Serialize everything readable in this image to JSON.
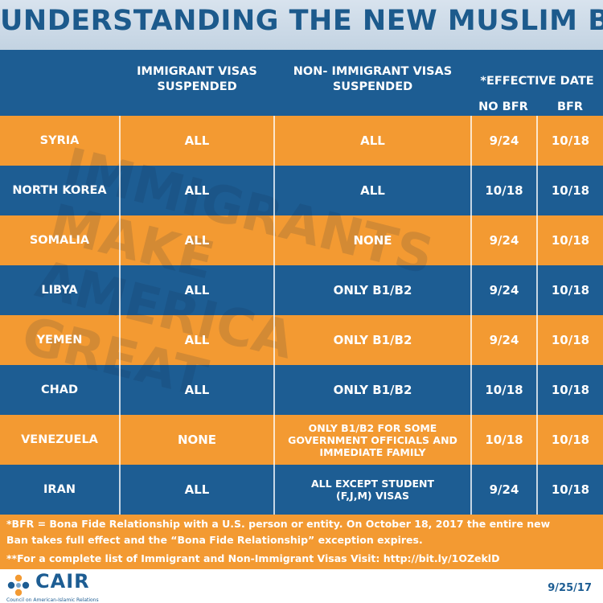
{
  "title": "UNDERSTANDING THE NEW MUSLIM BAN",
  "watermark": "IMMIGRANTS\nMAKE\nAMERICA\nGREAT",
  "headers": {
    "immigrant": "IMMIGRANT VISAS SUSPENDED",
    "non_immigrant": "NON- IMMIGRANT VISAS SUSPENDED",
    "effective": "*EFFECTIVE DATE",
    "no_bfr": "NO BFR",
    "bfr": "BFR"
  },
  "rows": [
    {
      "country": "SYRIA",
      "immigrant": "ALL",
      "non_immigrant": "ALL",
      "no_bfr": "9/24",
      "bfr": "10/18"
    },
    {
      "country": "NORTH KOREA",
      "immigrant": "ALL",
      "non_immigrant": "ALL",
      "no_bfr": "10/18",
      "bfr": "10/18"
    },
    {
      "country": "SOMALIA",
      "immigrant": "ALL",
      "non_immigrant": "NONE",
      "no_bfr": "9/24",
      "bfr": "10/18"
    },
    {
      "country": "LIBYA",
      "immigrant": "ALL",
      "non_immigrant": "ONLY B1/B2",
      "no_bfr": "9/24",
      "bfr": "10/18"
    },
    {
      "country": "YEMEN",
      "immigrant": "ALL",
      "non_immigrant": "ONLY B1/B2",
      "no_bfr": "9/24",
      "bfr": "10/18"
    },
    {
      "country": "CHAD",
      "immigrant": "ALL",
      "non_immigrant": "ONLY B1/B2",
      "no_bfr": "10/18",
      "bfr": "10/18"
    },
    {
      "country": "VENEZUELA",
      "immigrant": "NONE",
      "non_immigrant": "ONLY B1/B2 FOR SOME GOVERNMENT OFFICIALS AND IMMEDIATE FAMILY",
      "no_bfr": "10/18",
      "bfr": "10/18"
    },
    {
      "country": "IRAN",
      "immigrant": "ALL",
      "non_immigrant": "ALL EXCEPT STUDENT (F,J,M) VISAS",
      "no_bfr": "9/24",
      "bfr": "10/18"
    }
  ],
  "footnotes": {
    "line1": "*BFR = Bona Fide Relationship with a U.S. person or entity. On October 18, 2017 the entire new",
    "line2": "Ban takes full effect and the “Bona Fide Relationship” exception expires.",
    "line3_prefix": "**For a complete list of Immigrant and Non-Immigrant Visas Visit:",
    "link": "http://bit.ly/1OZeklD"
  },
  "logo": {
    "name": "CAIR",
    "subtitle": "Council on American-Islamic Relations"
  },
  "date": "9/25/17",
  "colors": {
    "blue": "#1d5d93",
    "orange": "#f39a32"
  }
}
